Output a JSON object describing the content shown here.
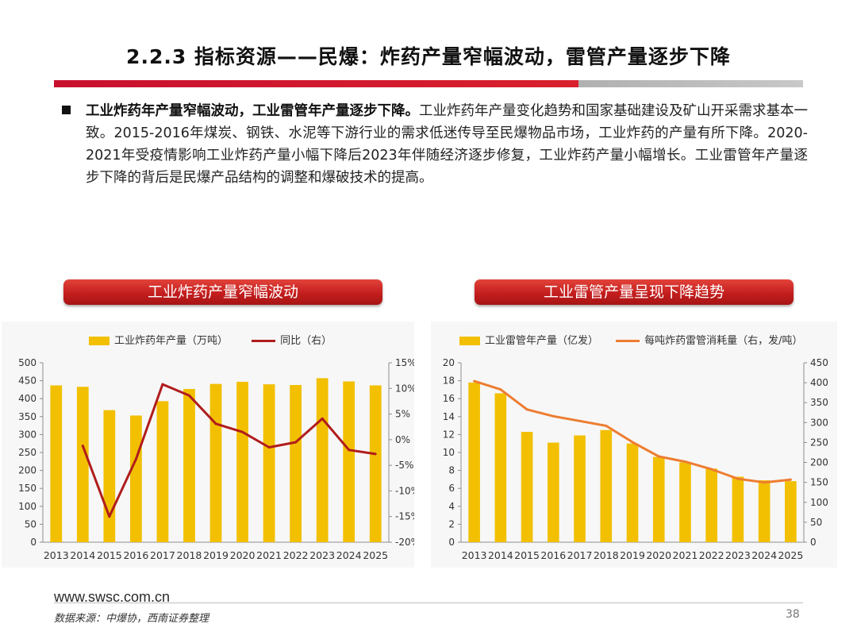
{
  "slide": {
    "title": "2.2.3 指标资源——民爆：炸药产量窄幅波动，雷管产量逐步下降",
    "bullet_bold": "工业炸药年产量窄幅波动，工业雷管年产量逐步下降。",
    "bullet_text": "工业炸药年产量变化趋势和国家基础建设及矿山开采需求基本一致。2015-2016年煤炭、钢铁、水泥等下游行业的需求低迷传导至民爆物品市场，工业炸药的产量有所下降。2020-2021年受疫情影响工业炸药产量小幅下降后2023年伴随经济逐步修复，工业炸药产量小幅增长。工业雷管年产量逐步下降的背后是民爆产品结构的调整和爆破技术的提高。"
  },
  "colors": {
    "bar": "#f2c000",
    "line_left": "#b01c1c",
    "line_right": "#ed7d31",
    "banner": "#c41e1e",
    "accent": "#c8102e"
  },
  "chart_data": [
    {
      "type": "bar",
      "title": "工业炸药产量窄幅波动",
      "categories": [
        "2013",
        "2014",
        "2015",
        "2016",
        "2017",
        "2018",
        "2019",
        "2020",
        "2021",
        "2022",
        "2023",
        "2024",
        "2025"
      ],
      "series": [
        {
          "name": "工业炸药年产量（万吨）",
          "type": "bar",
          "axis": "left",
          "values": [
            437,
            433,
            368,
            353,
            393,
            427,
            441,
            447,
            440,
            438,
            457,
            448,
            437
          ]
        },
        {
          "name": "同比（右）",
          "type": "line",
          "axis": "right",
          "values": [
            null,
            -1.2,
            -15.0,
            -3.8,
            10.8,
            8.6,
            3.1,
            1.5,
            -1.5,
            -0.5,
            4.1,
            -2.0,
            -2.8
          ]
        }
      ],
      "yleft": {
        "min": 0,
        "max": 500,
        "step": 50,
        "ticks": [
          "0",
          "50",
          "100",
          "150",
          "200",
          "250",
          "300",
          "350",
          "400",
          "450",
          "500"
        ]
      },
      "yright": {
        "min": -20,
        "max": 15,
        "step": 5,
        "ticks": [
          "-20%",
          "-15%",
          "-10%",
          "-5%",
          "0%",
          "5%",
          "10%",
          "15%"
        ]
      },
      "legend": "top",
      "grid": false
    },
    {
      "type": "bar",
      "title": "工业雷管产量呈现下降趋势",
      "categories": [
        "2013",
        "2014",
        "2015",
        "2016",
        "2017",
        "2018",
        "2019",
        "2020",
        "2021",
        "2022",
        "2023",
        "2024",
        "2025"
      ],
      "series": [
        {
          "name": "工业雷管年产量（亿发）",
          "type": "bar",
          "axis": "left",
          "values": [
            17.8,
            16.6,
            12.3,
            11.1,
            11.9,
            12.5,
            11.0,
            9.5,
            8.9,
            8.2,
            7.3,
            6.9,
            6.8
          ]
        },
        {
          "name": "每吨炸药雷管消耗量（右，发/吨）",
          "type": "line",
          "axis": "right",
          "values": [
            404,
            383,
            333,
            316,
            304,
            292,
            251,
            215,
            202,
            183,
            159,
            150,
            157
          ]
        }
      ],
      "yleft": {
        "min": 0,
        "max": 20,
        "step": 2,
        "ticks": [
          "0",
          "2",
          "4",
          "6",
          "8",
          "10",
          "12",
          "14",
          "16",
          "18",
          "20"
        ]
      },
      "yright": {
        "min": 0,
        "max": 450,
        "step": 50,
        "ticks": [
          "0",
          "50",
          "100",
          "150",
          "200",
          "250",
          "300",
          "350",
          "400",
          "450"
        ]
      },
      "legend": "top",
      "grid": false
    }
  ],
  "footer": {
    "url": "www.swsc.com.cn",
    "source": "数据来源：中爆协，西南证券整理",
    "page": "38"
  }
}
